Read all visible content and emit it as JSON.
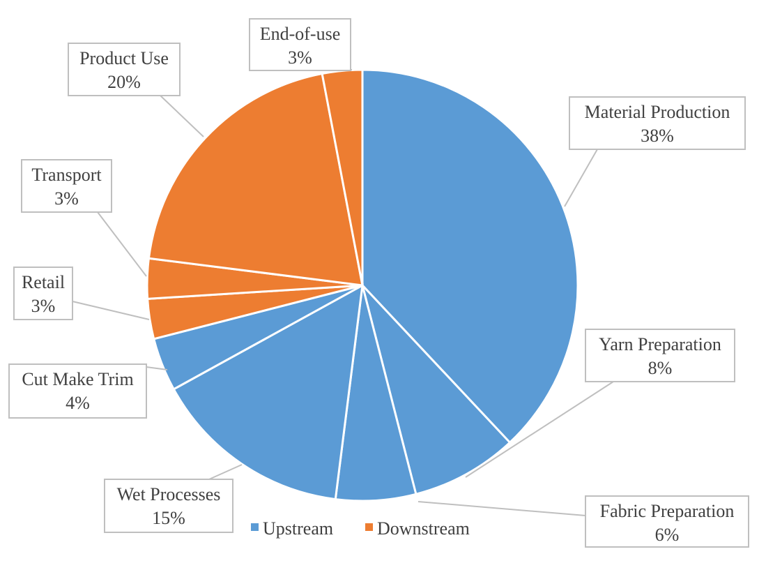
{
  "chart_data": {
    "type": "pie",
    "title": "",
    "slices": [
      {
        "label": "Material Production",
        "percent_label": "38%",
        "value": 38,
        "group": "Upstream"
      },
      {
        "label": "Yarn Preparation",
        "percent_label": "8%",
        "value": 8,
        "group": "Upstream"
      },
      {
        "label": "Fabric Preparation",
        "percent_label": "6%",
        "value": 6,
        "group": "Upstream"
      },
      {
        "label": "Wet Processes",
        "percent_label": "15%",
        "value": 15,
        "group": "Upstream"
      },
      {
        "label": "Cut Make Trim",
        "percent_label": "4%",
        "value": 4,
        "group": "Upstream"
      },
      {
        "label": "Retail",
        "percent_label": "3%",
        "value": 3,
        "group": "Downstream"
      },
      {
        "label": "Transport",
        "percent_label": "3%",
        "value": 3,
        "group": "Downstream"
      },
      {
        "label": "Product Use",
        "percent_label": "20%",
        "value": 20,
        "group": "Downstream"
      },
      {
        "label": "End-of-use",
        "percent_label": "3%",
        "value": 3,
        "group": "Downstream"
      }
    ],
    "legend": {
      "position": "bottom",
      "entries": [
        {
          "name": "Upstream",
          "color": "#5B9BD5"
        },
        {
          "name": "Downstream",
          "color": "#ED7D31"
        }
      ]
    },
    "start_angle": "12 o'clock",
    "direction": "clockwise"
  }
}
